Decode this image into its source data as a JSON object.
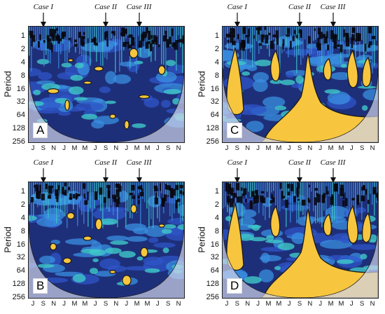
{
  "chart_data": [
    {
      "type": "heatmap",
      "panel": "A",
      "ylabel": "Period",
      "yticks": [
        "1",
        "2",
        "4",
        "8",
        "16",
        "32",
        "64",
        "128",
        "256"
      ],
      "xticks": [
        "J",
        "S",
        "N",
        "J",
        "M",
        "M",
        "J",
        "S",
        "N",
        "J",
        "M",
        "M",
        "J",
        "S",
        "N"
      ],
      "cases": [
        {
          "label": "Case I",
          "month_index": 1
        },
        {
          "label": "Case II",
          "month_index": 7
        },
        {
          "label": "Case III",
          "month_index": 10.2
        }
      ],
      "high_power_regions": "small"
    },
    {
      "type": "heatmap",
      "panel": "C",
      "ylabel": "Period",
      "yticks": [
        "1",
        "2",
        "4",
        "8",
        "16",
        "32",
        "64",
        "128",
        "256"
      ],
      "xticks": [
        "J",
        "S",
        "N",
        "J",
        "M",
        "M",
        "J",
        "S",
        "N",
        "J",
        "M",
        "M",
        "J",
        "S",
        "N"
      ],
      "cases": [
        {
          "label": "Case I",
          "month_index": 1
        },
        {
          "label": "Case II",
          "month_index": 7
        },
        {
          "label": "Case III",
          "month_index": 10.2
        }
      ],
      "high_power_regions": "large"
    },
    {
      "type": "heatmap",
      "panel": "B",
      "ylabel": "Period",
      "yticks": [
        "1",
        "2",
        "4",
        "8",
        "16",
        "32",
        "64",
        "128",
        "256"
      ],
      "xticks": [
        "J",
        "S",
        "N",
        "J",
        "M",
        "M",
        "J",
        "S",
        "N",
        "J",
        "M",
        "M",
        "J",
        "S",
        "N"
      ],
      "cases": [
        {
          "label": "Case I",
          "month_index": 1
        },
        {
          "label": "Case II",
          "month_index": 7
        },
        {
          "label": "Case III",
          "month_index": 10.2
        }
      ],
      "high_power_regions": "small"
    },
    {
      "type": "heatmap",
      "panel": "D",
      "ylabel": "Period",
      "yticks": [
        "1",
        "2",
        "4",
        "8",
        "16",
        "32",
        "64",
        "128",
        "256"
      ],
      "xticks": [
        "J",
        "S",
        "N",
        "J",
        "M",
        "M",
        "J",
        "S",
        "N",
        "J",
        "M",
        "M",
        "J",
        "S",
        "N"
      ],
      "cases": [
        {
          "label": "Case I",
          "month_index": 1
        },
        {
          "label": "Case II",
          "month_index": 7
        },
        {
          "label": "Case III",
          "month_index": 10.2
        }
      ],
      "high_power_regions": "large"
    }
  ],
  "colors": {
    "low": "#1e2f7a",
    "mid": "#2f55c8",
    "midlight": "#3a8fe0",
    "cyan": "#3fc8c8",
    "high": "#f7c63e",
    "outline": "#1a1a1a",
    "coi_shade": "#cfd3ea"
  }
}
